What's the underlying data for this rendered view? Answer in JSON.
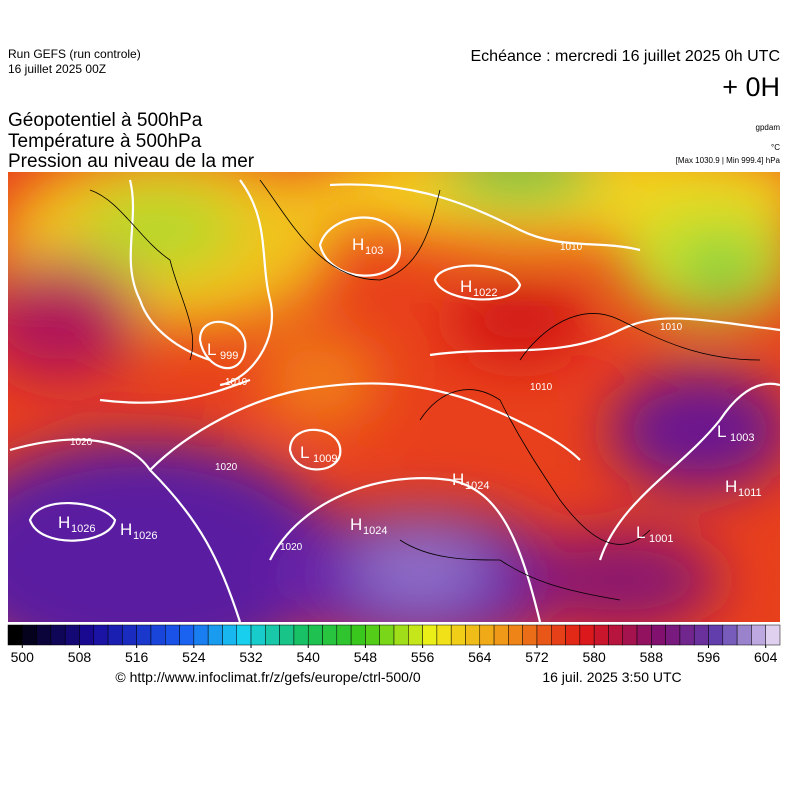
{
  "header": {
    "run": "Run GEFS (run controle)",
    "run_date": "16 juillet 2025 00Z",
    "echeance": "Echéance : mercredi 16 juillet 2025 0h UTC",
    "offset": "+ 0H"
  },
  "layers": [
    "Géopotentiel à 500hPa",
    "Température à 500hPa",
    "Pression au niveau de la mer"
  ],
  "units": {
    "geopotential": "gpdam",
    "temperature": "°C",
    "pressure": "[Max 1030.9 | Min 999.4] hPa"
  },
  "map": {
    "centers": [
      {
        "letter": "H",
        "value": 103
      },
      {
        "letter": "H",
        "value": 1022
      },
      {
        "letter": "L",
        "value": 999
      },
      {
        "letter": "L",
        "value": 1009
      },
      {
        "letter": "H",
        "value": 1024
      },
      {
        "letter": "H",
        "value": 1026
      },
      {
        "letter": "H",
        "value": 1026
      },
      {
        "letter": "H",
        "value": 1024
      },
      {
        "letter": "L",
        "value": 1003
      },
      {
        "letter": "H",
        "value": 1011
      },
      {
        "letter": "L",
        "value": 1001
      }
    ],
    "isobar_labels": [
      1010,
      1010,
      1010,
      1020,
      1020,
      1020,
      1010
    ]
  },
  "colorbar": {
    "ticks": [
      500,
      508,
      516,
      524,
      532,
      540,
      548,
      556,
      564,
      572,
      580,
      588,
      596,
      604
    ],
    "lim": [
      498,
      606
    ]
  },
  "footer": {
    "url": "© http://www.infoclimat.fr/z/gefs/europe/ctrl-500/0",
    "date": "16 juil. 2025  3:50 UTC"
  }
}
